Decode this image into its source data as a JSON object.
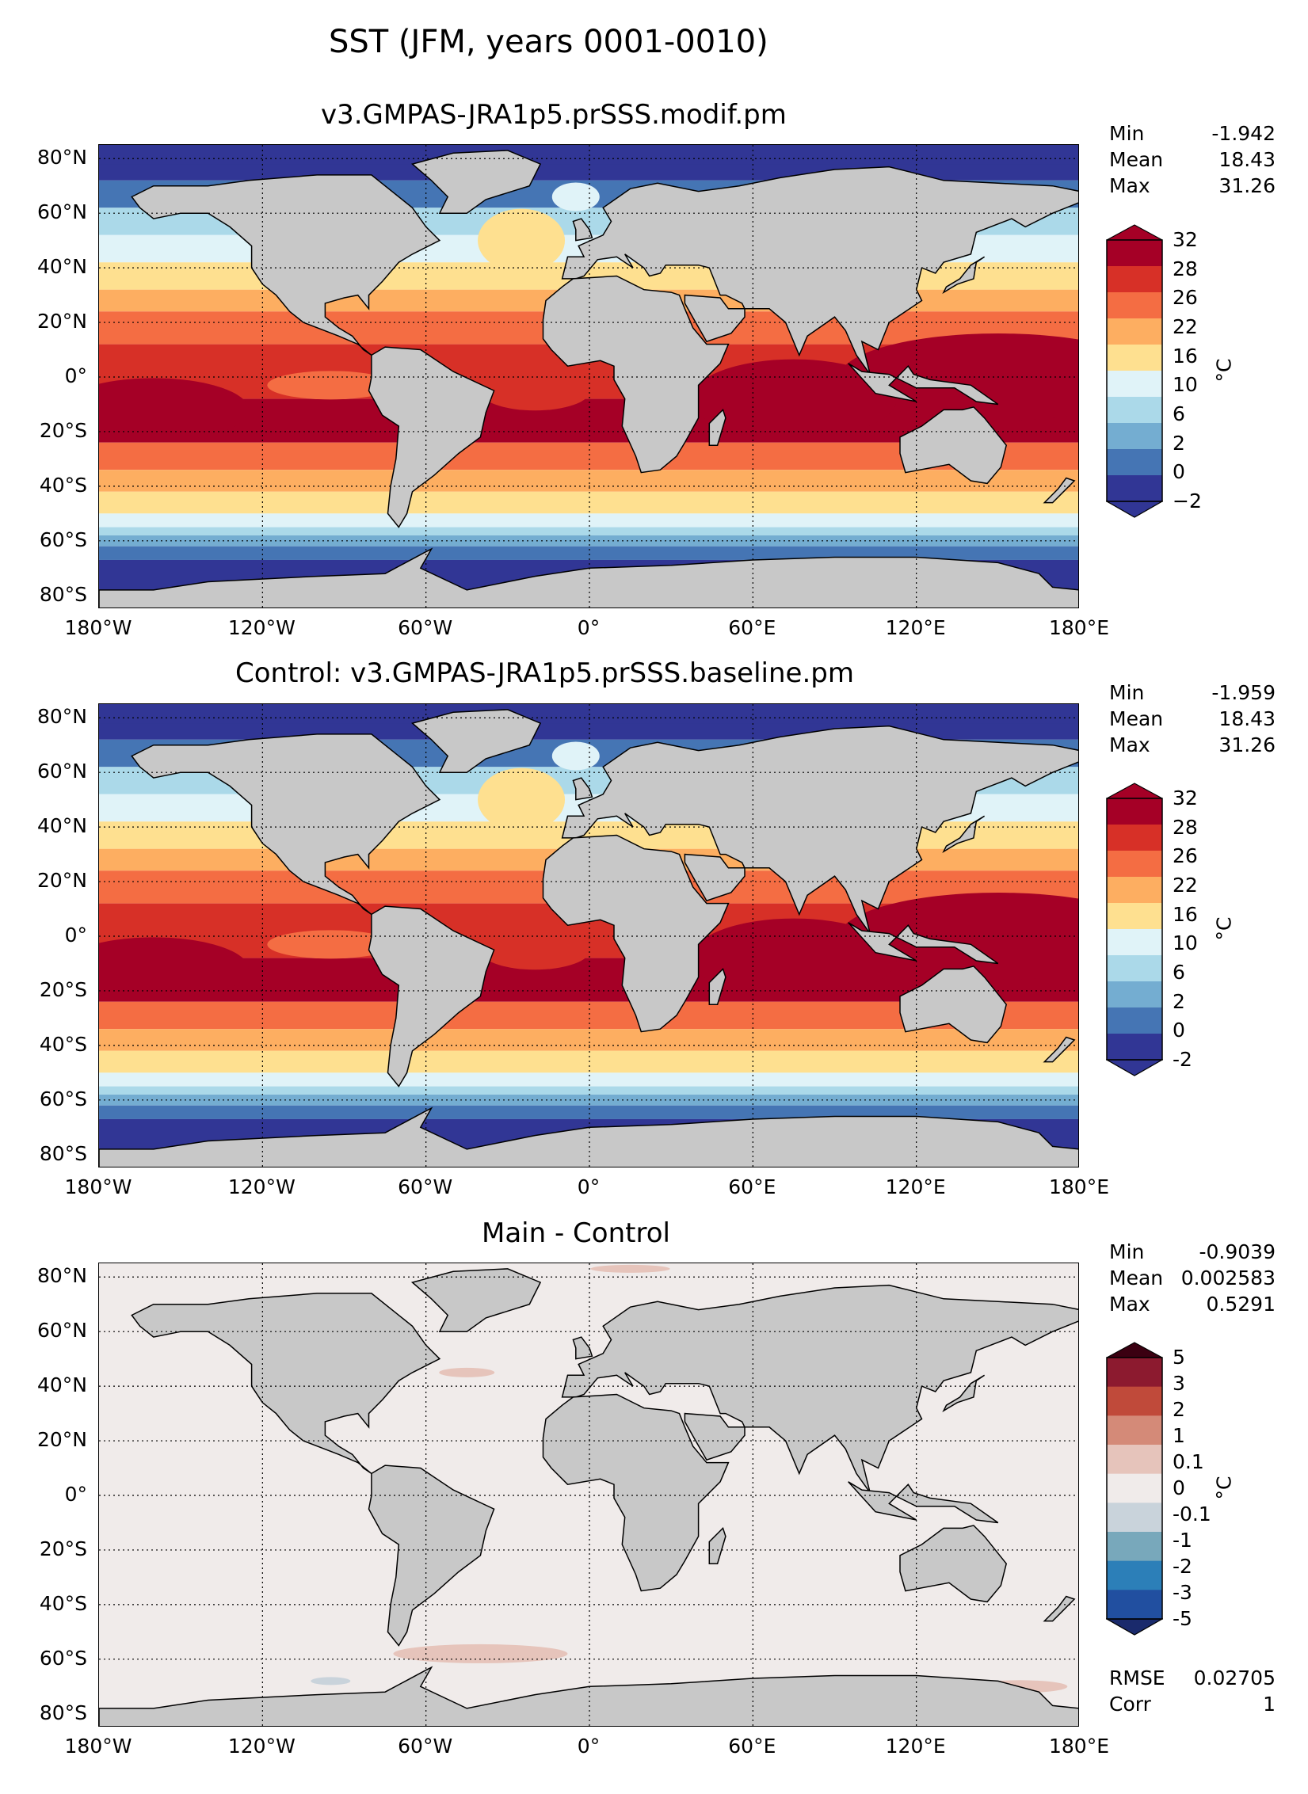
{
  "figure": {
    "title": "SST (JFM, years 0001-0010)",
    "unit_label": "°C",
    "lat_labels": [
      "80°N",
      "60°N",
      "40°N",
      "20°N",
      "0°",
      "20°S",
      "40°S",
      "60°S",
      "80°S"
    ],
    "lon_labels": [
      "180°W",
      "120°W",
      "60°W",
      "0°",
      "60°E",
      "120°E",
      "180°E"
    ],
    "land_color": "#c8c8c8"
  },
  "panels": [
    {
      "title": "v3.GMPAS-JRA1p5.prSSS.modif.pm",
      "stats": [
        {
          "label": "Min",
          "value": "-1.942"
        },
        {
          "label": "Mean",
          "value": "18.43"
        },
        {
          "label": "Max",
          "value": "31.26"
        }
      ],
      "colorbar": {
        "ticks": [
          "32",
          "28",
          "26",
          "22",
          "16",
          "10",
          "6",
          "2",
          "0",
          "−2"
        ],
        "colors": [
          "#a50026",
          "#d73027",
          "#f46d43",
          "#fdae61",
          "#fee090",
          "#e0f3f8",
          "#abd9e9",
          "#74add1",
          "#4575b4",
          "#313695"
        ]
      }
    },
    {
      "title": "Control: v3.GMPAS-JRA1p5.prSSS.baseline.pm",
      "stats": [
        {
          "label": "Min",
          "value": "-1.959"
        },
        {
          "label": "Mean",
          "value": "18.43"
        },
        {
          "label": "Max",
          "value": "31.26"
        }
      ],
      "colorbar": {
        "ticks": [
          "32",
          "28",
          "26",
          "22",
          "16",
          "10",
          "6",
          "2",
          "0",
          "-2"
        ],
        "colors": [
          "#a50026",
          "#d73027",
          "#f46d43",
          "#fdae61",
          "#fee090",
          "#e0f3f8",
          "#abd9e9",
          "#74add1",
          "#4575b4",
          "#313695"
        ]
      }
    },
    {
      "title": "Main - Control",
      "stats": [
        {
          "label": "Min",
          "value": "-0.9039"
        },
        {
          "label": "Mean",
          "value": "0.002583"
        },
        {
          "label": "Max",
          "value": "0.5291"
        }
      ],
      "colorbar": {
        "ticks": [
          "5",
          "3",
          "2",
          "1",
          "0.1",
          "0",
          "-0.1",
          "-1",
          "-2",
          "-3",
          "-5"
        ],
        "colors": [
          "#3b0011",
          "#8c1a2f",
          "#c04a3a",
          "#d48a78",
          "#e6c4bb",
          "#f0ebea",
          "#c9d3db",
          "#78a8bb",
          "#2c7fb8",
          "#214fa0",
          "#1a2a6c"
        ]
      },
      "diagnostics": [
        {
          "label": "RMSE",
          "value": "0.02705"
        },
        {
          "label": "Corr",
          "value": "1"
        }
      ]
    }
  ]
}
